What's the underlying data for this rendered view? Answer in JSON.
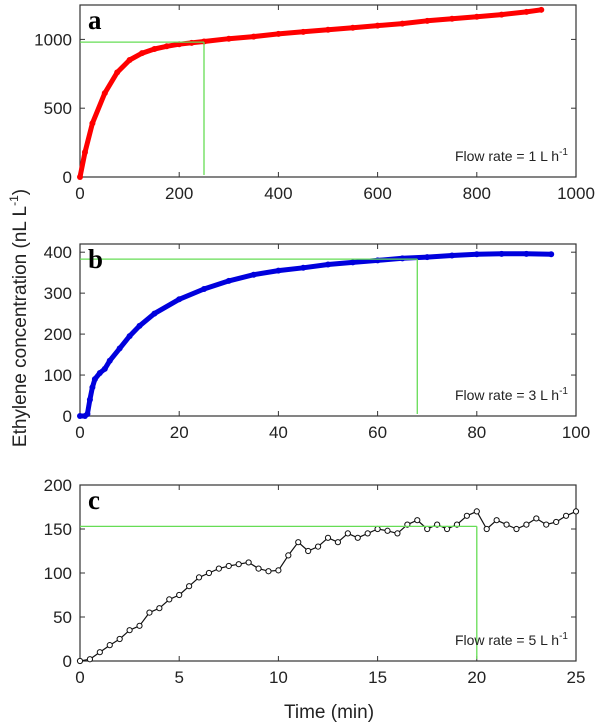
{
  "figure": {
    "ylabel": "Ethylene concentration  (nL L",
    "ylabel_sup": "-1",
    "ylabel_close": ")",
    "xlabel": "Time (min)"
  },
  "chart_data": [
    {
      "type": "line",
      "panel": "a",
      "xlim": [
        0,
        1000
      ],
      "ylim": [
        0,
        1250
      ],
      "x_ticks": [
        "0",
        "200",
        "400",
        "600",
        "800",
        "1000"
      ],
      "y_ticks": [
        "0",
        "500",
        "1000"
      ],
      "x_tick_values": [
        0,
        200,
        400,
        600,
        800,
        1000
      ],
      "y_tick_values": [
        0,
        500,
        1000
      ],
      "color": "#ff0000",
      "marker": "filled-circle",
      "annotation": {
        "text": "Flow rate = 1 L h",
        "sup": "-1"
      },
      "reference": {
        "x": 250,
        "y": 980,
        "color": "#66dd55"
      },
      "series": [
        {
          "x": [
            0,
            10,
            25,
            50,
            75,
            100,
            125,
            150,
            175,
            200,
            225,
            250,
            300,
            350,
            400,
            450,
            500,
            550,
            600,
            650,
            700,
            750,
            800,
            850,
            900,
            930
          ],
          "y": [
            0,
            180,
            390,
            610,
            760,
            850,
            900,
            930,
            950,
            965,
            975,
            985,
            1005,
            1020,
            1040,
            1055,
            1070,
            1085,
            1100,
            1115,
            1135,
            1150,
            1165,
            1180,
            1200,
            1215
          ]
        }
      ]
    },
    {
      "type": "line",
      "panel": "b",
      "xlim": [
        0,
        100
      ],
      "ylim": [
        0,
        420
      ],
      "x_ticks": [
        "0",
        "20",
        "40",
        "60",
        "80",
        "100"
      ],
      "y_ticks": [
        "0",
        "100",
        "200",
        "300",
        "400"
      ],
      "x_tick_values": [
        0,
        20,
        40,
        60,
        80,
        100
      ],
      "y_tick_values": [
        0,
        100,
        200,
        300,
        400
      ],
      "color": "#0000dd",
      "marker": "filled-circle",
      "annotation": {
        "text": "Flow rate = 3 L h",
        "sup": "-1"
      },
      "reference": {
        "x": 68,
        "y": 383,
        "color": "#66dd55"
      },
      "series": [
        {
          "x": [
            0,
            1,
            1.5,
            2,
            2.5,
            3,
            4,
            5,
            6,
            8,
            10,
            12,
            15,
            20,
            25,
            30,
            35,
            40,
            45,
            50,
            55,
            60,
            65,
            70,
            75,
            80,
            85,
            90,
            95
          ],
          "y": [
            0,
            0,
            5,
            40,
            70,
            90,
            105,
            115,
            135,
            165,
            195,
            220,
            250,
            285,
            310,
            330,
            345,
            355,
            362,
            370,
            375,
            380,
            385,
            388,
            392,
            395,
            396,
            396,
            395
          ]
        }
      ]
    },
    {
      "type": "line",
      "panel": "c",
      "xlim": [
        0,
        25
      ],
      "ylim": [
        0,
        200
      ],
      "x_ticks": [
        "0",
        "5",
        "10",
        "15",
        "20",
        "25"
      ],
      "y_ticks": [
        "0",
        "50",
        "100",
        "150",
        "200"
      ],
      "x_tick_values": [
        0,
        5,
        10,
        15,
        20,
        25
      ],
      "y_tick_values": [
        0,
        50,
        100,
        150,
        200
      ],
      "color": "#111111",
      "marker": "open-circle",
      "annotation": {
        "text": "Flow rate = 5 L h",
        "sup": "-1"
      },
      "reference": {
        "x": 20,
        "y": 153,
        "color": "#66dd55"
      },
      "series": [
        {
          "x": [
            0,
            0.5,
            1,
            1.5,
            2,
            2.5,
            3,
            3.5,
            4,
            4.5,
            5,
            5.5,
            6,
            6.5,
            7,
            7.5,
            8,
            8.5,
            9,
            9.5,
            10,
            10.5,
            11,
            11.5,
            12,
            12.5,
            13,
            13.5,
            14,
            14.5,
            15,
            15.5,
            16,
            16.5,
            17,
            17.5,
            18,
            18.5,
            19,
            19.5,
            20,
            20.5,
            21,
            21.5,
            22,
            22.5,
            23,
            23.5,
            24,
            24.5,
            25
          ],
          "y": [
            0,
            2,
            10,
            18,
            25,
            35,
            40,
            55,
            60,
            70,
            75,
            85,
            95,
            100,
            105,
            108,
            110,
            112,
            105,
            102,
            103,
            120,
            135,
            125,
            130,
            140,
            135,
            145,
            140,
            145,
            150,
            148,
            145,
            155,
            160,
            150,
            155,
            150,
            155,
            165,
            170,
            150,
            160,
            155,
            150,
            155,
            162,
            155,
            158,
            165,
            170
          ]
        }
      ]
    }
  ]
}
